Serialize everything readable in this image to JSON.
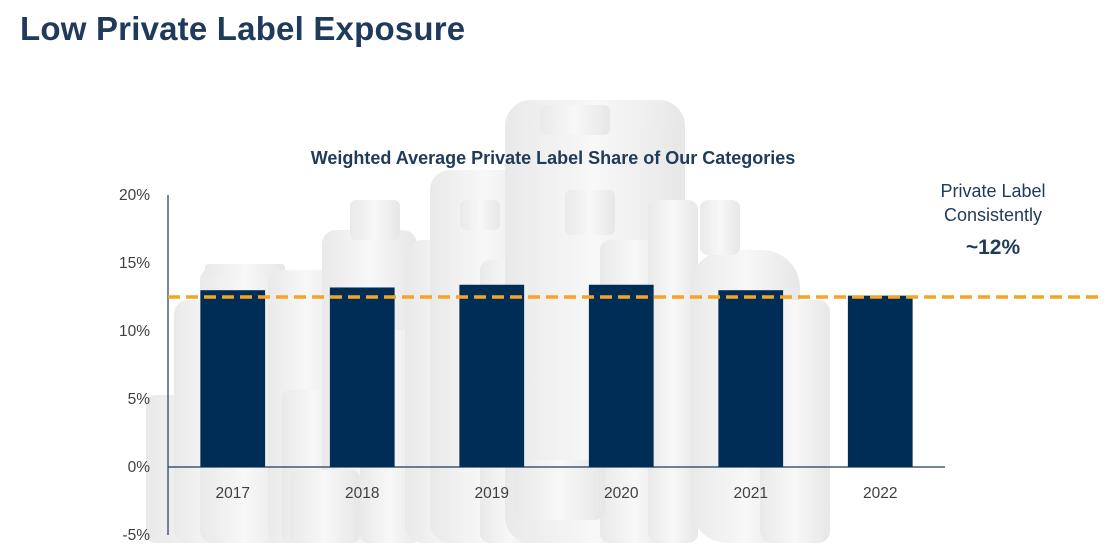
{
  "page": {
    "title": "Low Private Label Exposure"
  },
  "callout": {
    "line1": "Private Label",
    "line2": "Consistently",
    "line3": "~12%"
  },
  "reference_line": {
    "value": 12.5,
    "color": "#f7a324"
  },
  "colors": {
    "bar": "#002d56",
    "axis": "#1f3a5a",
    "title": "#1f3a5a"
  },
  "chart_data": {
    "type": "bar",
    "title": "Weighted Average Private Label Share of Our Categories",
    "categories": [
      "2017",
      "2018",
      "2019",
      "2020",
      "2021",
      "2022"
    ],
    "values": [
      13.0,
      13.2,
      13.4,
      13.4,
      13.0,
      12.6
    ],
    "ylim": [
      -5,
      20
    ],
    "yticks": [
      -5,
      0,
      5,
      10,
      15,
      20
    ],
    "ytick_labels": [
      "-5%",
      "0%",
      "5%",
      "10%",
      "15%",
      "20%"
    ],
    "xlabel": "",
    "ylabel": "",
    "grid": false,
    "legend": "none"
  }
}
